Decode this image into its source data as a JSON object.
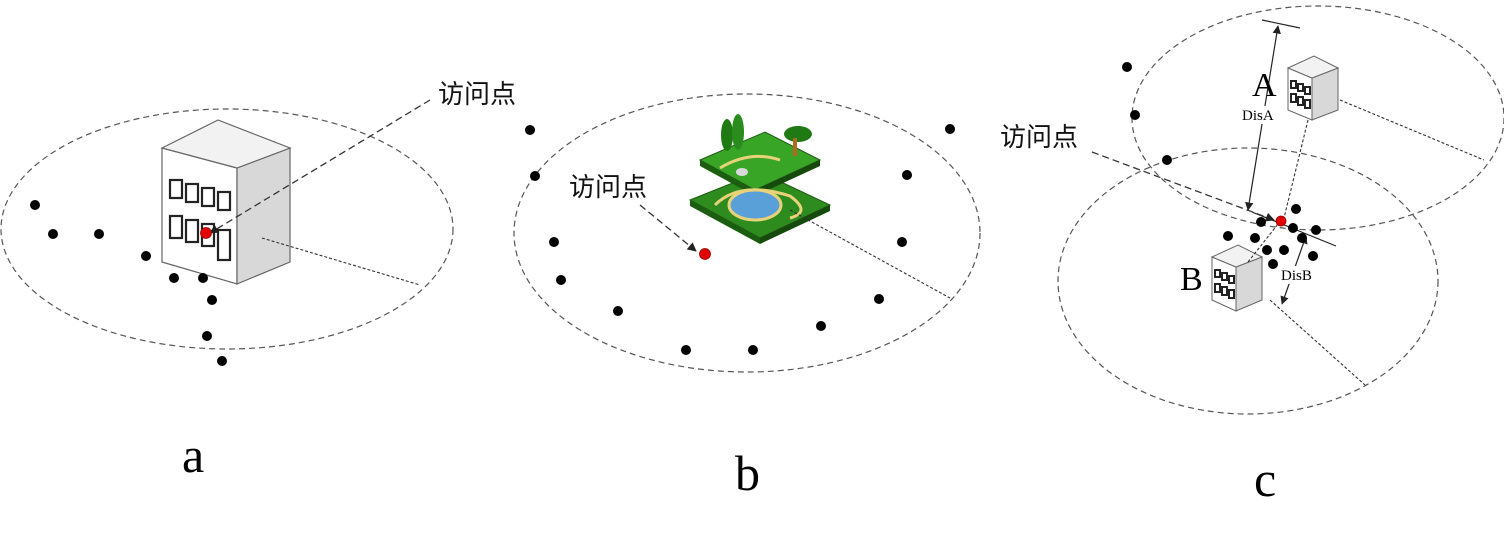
{
  "panels": {
    "a": {
      "caption": "a",
      "access_point_label": "访问点"
    },
    "b": {
      "caption": "b",
      "access_point_label": "访问点"
    },
    "c": {
      "caption": "c",
      "access_point_label": "访问点",
      "label_A": "A",
      "label_B": "B",
      "dis_A": "DisA",
      "dis_B": "DisB"
    }
  },
  "colors": {
    "access_point": "#e00000",
    "poi": "#000000",
    "ring": "#555555"
  },
  "icons": {
    "building": "building-icon",
    "park": "park-icon",
    "shop": "shop-icon"
  }
}
